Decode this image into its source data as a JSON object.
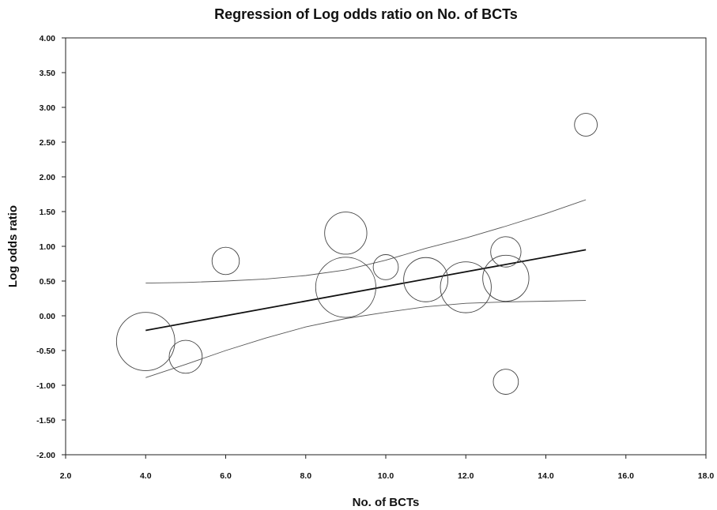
{
  "chart_data": {
    "type": "scatter",
    "title": "Regression of Log odds ratio on No. of BCTs",
    "xlabel": "No. of BCTs",
    "ylabel": "Log odds ratio",
    "xlim": [
      2.0,
      18.0
    ],
    "ylim": [
      -2.0,
      4.0
    ],
    "x_ticks": [
      "2.0",
      "4.0",
      "6.0",
      "8.0",
      "10.0",
      "12.0",
      "14.0",
      "16.0",
      "18.0"
    ],
    "y_ticks": [
      "4.00",
      "3.50",
      "3.00",
      "2.50",
      "2.00",
      "1.50",
      "1.00",
      "0.50",
      "0.00",
      "-0.50",
      "-1.00",
      "-1.50",
      "-2.00"
    ],
    "grid": false,
    "points": [
      {
        "x": 4.0,
        "y": -0.37,
        "weight": 0.59
      },
      {
        "x": 5.0,
        "y": -0.59,
        "weight": 0.19
      },
      {
        "x": 6.0,
        "y": 0.79,
        "weight": 0.13
      },
      {
        "x": 9.0,
        "y": 1.19,
        "weight": 0.31
      },
      {
        "x": 9.0,
        "y": 0.41,
        "weight": 0.63
      },
      {
        "x": 10.0,
        "y": 0.7,
        "weight": 0.11
      },
      {
        "x": 11.0,
        "y": 0.52,
        "weight": 0.34
      },
      {
        "x": 12.0,
        "y": 0.41,
        "weight": 0.45
      },
      {
        "x": 13.0,
        "y": 0.92,
        "weight": 0.16
      },
      {
        "x": 13.0,
        "y": 0.54,
        "weight": 0.37
      },
      {
        "x": 13.0,
        "y": -0.95,
        "weight": 0.11
      },
      {
        "x": 15.0,
        "y": 2.75,
        "weight": 0.09
      }
    ],
    "regression_line": {
      "x": [
        4.0,
        15.0
      ],
      "y": [
        -0.21,
        0.95
      ]
    },
    "confidence_band": {
      "x": [
        4.0,
        5.0,
        6.0,
        7.0,
        8.0,
        9.0,
        10.0,
        11.0,
        12.0,
        13.0,
        14.0,
        15.0
      ],
      "upper": [
        0.47,
        0.48,
        0.5,
        0.53,
        0.58,
        0.66,
        0.8,
        0.97,
        1.12,
        1.29,
        1.47,
        1.67
      ],
      "lower": [
        -0.89,
        -0.7,
        -0.5,
        -0.32,
        -0.16,
        -0.04,
        0.05,
        0.13,
        0.18,
        0.2,
        0.21,
        0.22
      ]
    }
  }
}
